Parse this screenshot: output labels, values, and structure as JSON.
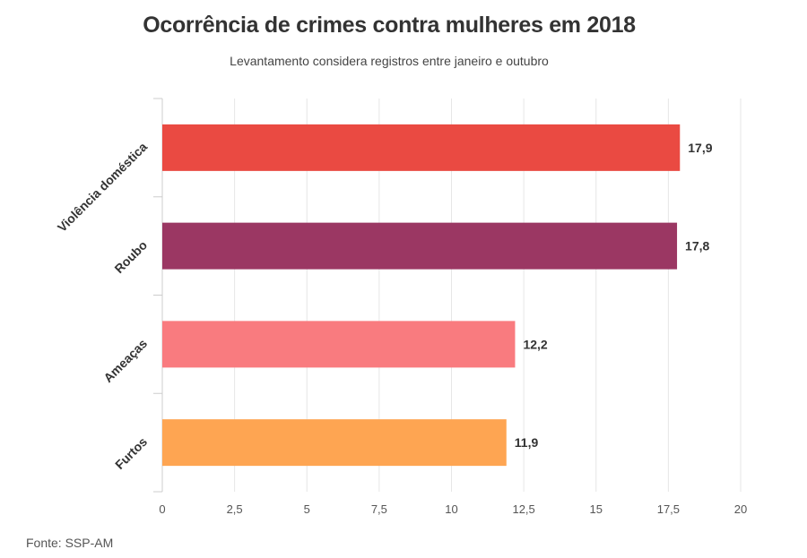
{
  "chart_data": {
    "type": "bar",
    "orientation": "horizontal",
    "title": "Ocorrência de crimes contra mulheres em 2018",
    "subtitle": "Levantamento considera registros entre janeiro e outubro",
    "categories": [
      "Violência doméstica",
      "Roubo",
      "Ameaças",
      "Furtos"
    ],
    "values": [
      17.9,
      17.8,
      12.2,
      11.9
    ],
    "data_labels": [
      "17,9",
      "17,8",
      "12,2",
      "11,9"
    ],
    "colors": [
      "#ea4a42",
      "#9b3763",
      "#f97b7f",
      "#fea552"
    ],
    "xlim": [
      0,
      20
    ],
    "x_ticks": [
      0,
      2.5,
      5,
      7.5,
      10,
      12.5,
      15,
      17.5,
      20
    ],
    "x_tick_labels": [
      "0",
      "2,5",
      "5",
      "7,5",
      "10",
      "12,5",
      "15",
      "17,5",
      "20"
    ],
    "grid": "vertical",
    "source": "Fonte: SSP-AM"
  }
}
